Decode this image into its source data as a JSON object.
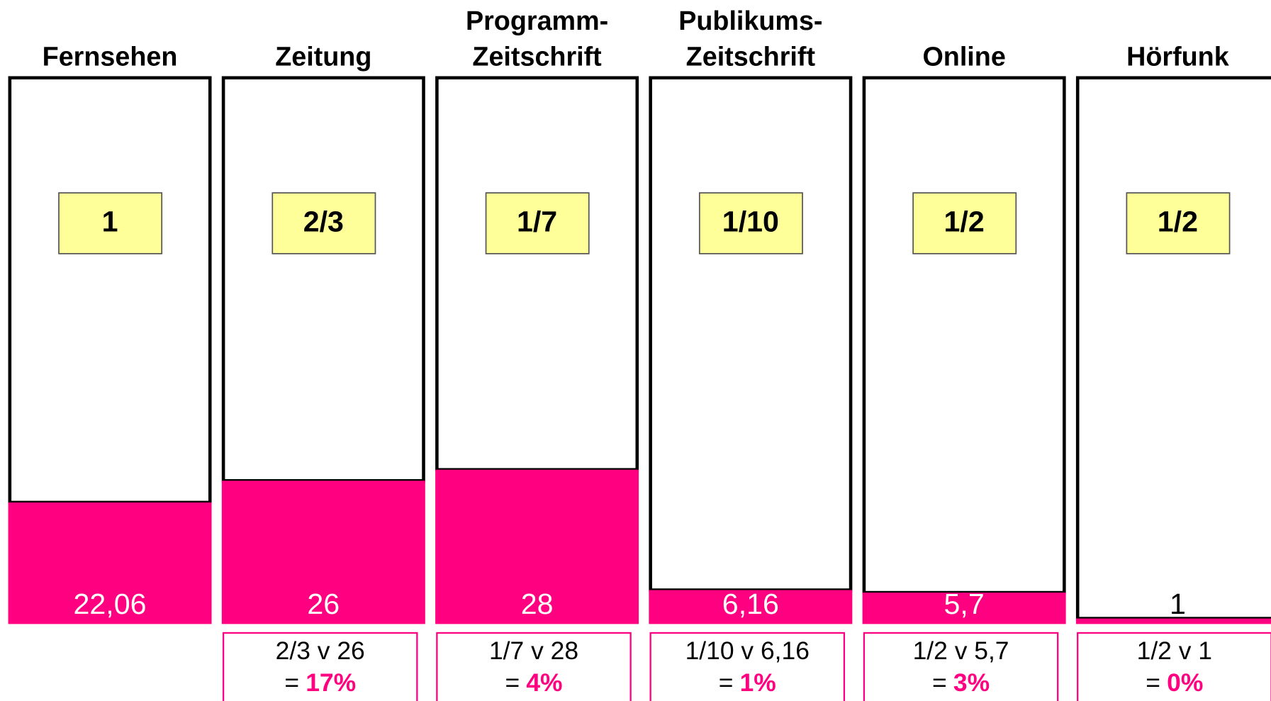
{
  "columns": [
    {
      "label": [
        "Fernsehen"
      ],
      "factor": "1",
      "value": 22.06,
      "value_label": "22,06"
    },
    {
      "label": [
        "Zeitung"
      ],
      "factor": "2/3",
      "value": 26,
      "value_label": "26",
      "formula": "2/3 v 26",
      "equals": "=",
      "result": "17%"
    },
    {
      "label": [
        "Programm-",
        "Zeitschrift"
      ],
      "factor": "1/7",
      "value": 28,
      "value_label": "28",
      "formula": "1/7 v 28",
      "equals": "=",
      "result": "4%"
    },
    {
      "label": [
        "Publikums-",
        "Zeitschrift"
      ],
      "factor": "1/10",
      "value": 6.16,
      "value_label": "6,16",
      "formula": "1/10 v 6,16",
      "equals": "=",
      "result": "1%"
    },
    {
      "label": [
        "Online"
      ],
      "factor": "1/2",
      "value": 5.7,
      "value_label": "5,7",
      "formula": "1/2 v 5,7",
      "equals": "=",
      "result": "3%"
    },
    {
      "label": [
        "Hörfunk"
      ],
      "factor": "1/2",
      "value": 1,
      "value_label": "1",
      "formula": "1/2 v 1",
      "equals": "=",
      "result": "0%"
    }
  ]
}
